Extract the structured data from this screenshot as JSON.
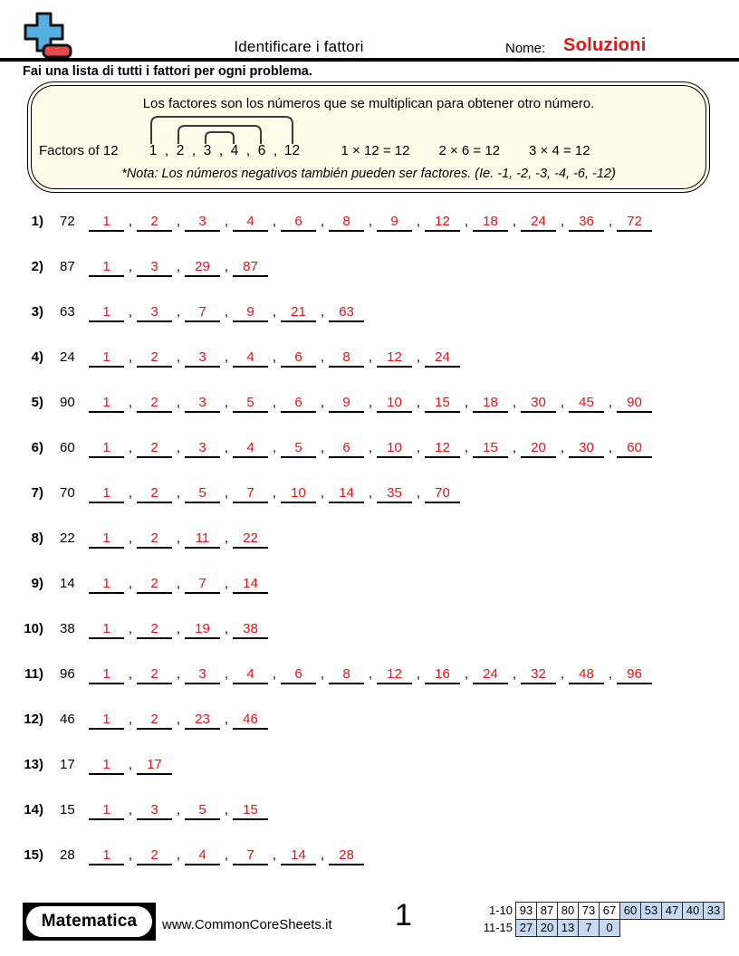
{
  "colors": {
    "answer_red": "#e81416",
    "logo_blue": "#52b0e2",
    "logo_bar_red": "#e04b4b",
    "example_bg": "#fffdea",
    "score_highlight": "#c6d9f0"
  },
  "header": {
    "title": "Identificare i fattori",
    "name_label": "Nome:",
    "name_value": "Soluzioni"
  },
  "instructions": "Fai una lista di tutti i fattori per ogni problema.",
  "example": {
    "line1": "Los factores son los números que se multiplican para obtener otro número.",
    "factors_label": "Factors of 12",
    "factors_list": [
      "1",
      "2",
      "3",
      "4",
      "6",
      "12"
    ],
    "equations": [
      "1 × 12 = 12",
      "2 × 6 = 12",
      "3 × 4 = 12"
    ],
    "note": "*Nota: Los números negativos también pueden ser factores. (Ie. -1, -2, -3, -4, -6, -12)"
  },
  "problems": [
    {
      "num": "1)",
      "value": "72",
      "factors": [
        "1",
        "2",
        "3",
        "4",
        "6",
        "8",
        "9",
        "12",
        "18",
        "24",
        "36",
        "72"
      ]
    },
    {
      "num": "2)",
      "value": "87",
      "factors": [
        "1",
        "3",
        "29",
        "87"
      ]
    },
    {
      "num": "3)",
      "value": "63",
      "factors": [
        "1",
        "3",
        "7",
        "9",
        "21",
        "63"
      ]
    },
    {
      "num": "4)",
      "value": "24",
      "factors": [
        "1",
        "2",
        "3",
        "4",
        "6",
        "8",
        "12",
        "24"
      ]
    },
    {
      "num": "5)",
      "value": "90",
      "factors": [
        "1",
        "2",
        "3",
        "5",
        "6",
        "9",
        "10",
        "15",
        "18",
        "30",
        "45",
        "90"
      ]
    },
    {
      "num": "6)",
      "value": "60",
      "factors": [
        "1",
        "2",
        "3",
        "4",
        "5",
        "6",
        "10",
        "12",
        "15",
        "20",
        "30",
        "60"
      ]
    },
    {
      "num": "7)",
      "value": "70",
      "factors": [
        "1",
        "2",
        "5",
        "7",
        "10",
        "14",
        "35",
        "70"
      ]
    },
    {
      "num": "8)",
      "value": "22",
      "factors": [
        "1",
        "2",
        "11",
        "22"
      ]
    },
    {
      "num": "9)",
      "value": "14",
      "factors": [
        "1",
        "2",
        "7",
        "14"
      ]
    },
    {
      "num": "10)",
      "value": "38",
      "factors": [
        "1",
        "2",
        "19",
        "38"
      ]
    },
    {
      "num": "11)",
      "value": "96",
      "factors": [
        "1",
        "2",
        "3",
        "4",
        "6",
        "8",
        "12",
        "16",
        "24",
        "32",
        "48",
        "96"
      ]
    },
    {
      "num": "12)",
      "value": "46",
      "factors": [
        "1",
        "2",
        "23",
        "46"
      ]
    },
    {
      "num": "13)",
      "value": "17",
      "factors": [
        "1",
        "17"
      ]
    },
    {
      "num": "14)",
      "value": "15",
      "factors": [
        "1",
        "3",
        "5",
        "15"
      ]
    },
    {
      "num": "15)",
      "value": "28",
      "factors": [
        "1",
        "2",
        "4",
        "7",
        "14",
        "28"
      ]
    }
  ],
  "footer": {
    "brand": "Matematica",
    "website": "www.CommonCoreSheets.it",
    "page": "1",
    "score_rows": [
      {
        "label": "1-10",
        "cells": [
          {
            "v": "93",
            "hl": false
          },
          {
            "v": "87",
            "hl": false
          },
          {
            "v": "80",
            "hl": false
          },
          {
            "v": "73",
            "hl": false
          },
          {
            "v": "67",
            "hl": false
          },
          {
            "v": "60",
            "hl": true
          },
          {
            "v": "53",
            "hl": true
          },
          {
            "v": "47",
            "hl": true
          },
          {
            "v": "40",
            "hl": true
          },
          {
            "v": "33",
            "hl": true
          }
        ]
      },
      {
        "label": "11-15",
        "cells": [
          {
            "v": "27",
            "hl": true
          },
          {
            "v": "20",
            "hl": true
          },
          {
            "v": "13",
            "hl": true
          },
          {
            "v": "7",
            "hl": true
          },
          {
            "v": "0",
            "hl": true
          }
        ]
      }
    ]
  }
}
